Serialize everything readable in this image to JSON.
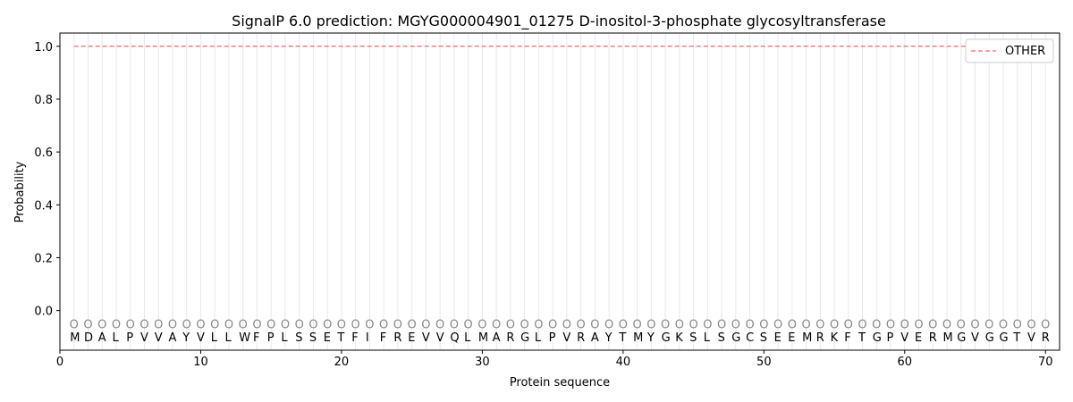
{
  "chart_data": {
    "type": "line",
    "title": "SignalP 6.0 prediction: MGYG000004901_01275 D-inositol-3-phosphate glycosyltransferase",
    "xlabel": "Protein sequence",
    "ylabel": "Probability",
    "xlim": [
      0,
      71
    ],
    "ylim": [
      -0.15,
      1.05
    ],
    "xticks": [
      0,
      10,
      20,
      30,
      40,
      50,
      60,
      70
    ],
    "yticks": [
      0.0,
      0.2,
      0.4,
      0.6,
      0.8,
      1.0
    ],
    "sequence": "MDALPVVAYVLLWFPLSSETFIFREVVQLMARGLPVRAYTMYGKSLSGCSEEMRKFTGPVERMGVGGTVR",
    "label_marker": "O",
    "series": [
      {
        "name": "OTHER",
        "color": "#f08080",
        "style": "dashed",
        "x_start": 1,
        "x_end": 70,
        "value": 1.0
      }
    ],
    "legend": "top-right",
    "grid": "vertical per residue"
  }
}
